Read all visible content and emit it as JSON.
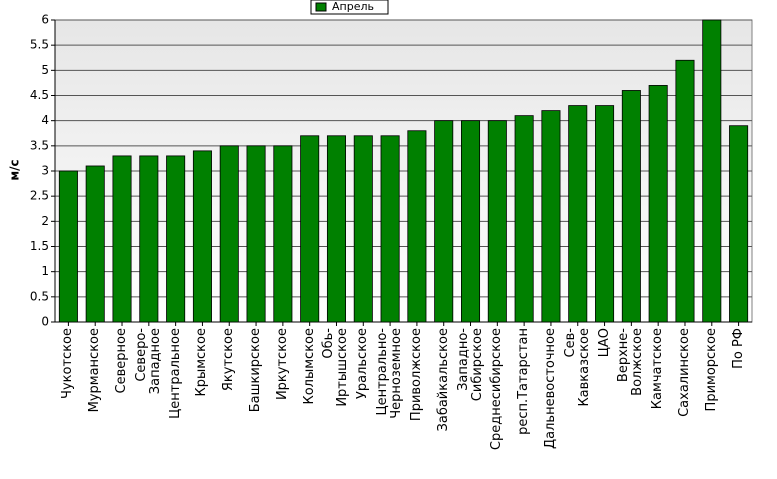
{
  "chart_data": {
    "type": "bar",
    "y_label": "м/с",
    "legend": "top",
    "series": [
      {
        "name": "Апрель",
        "color": "#008000",
        "values": [
          3.0,
          3.1,
          3.3,
          3.3,
          3.3,
          3.4,
          3.5,
          3.5,
          3.5,
          3.7,
          3.7,
          3.7,
          3.7,
          3.8,
          4.0,
          4.0,
          4.0,
          4.1,
          4.2,
          4.3,
          4.3,
          4.6,
          4.7,
          5.2,
          6.0,
          3.9
        ]
      }
    ],
    "categories": [
      "Чукотское",
      "Мурманское",
      "Северное",
      "Северо-\nЗападное",
      "Центральное",
      "Крымское",
      "Якутское",
      "Башкирское",
      "Иркутское",
      "Колымское",
      "Обь-\nИртышское",
      "Уральское",
      "Центрально-\nЧерноземное",
      "Приволжское",
      "Забайкальское",
      "Западно-\nСибирское",
      "Среднесибирское",
      "респ.Татарстан",
      "Дальневосточное",
      "Сев-\nКавказское",
      "ЦАО",
      "Верхне-\nВолжское",
      "Камчатское",
      "Сахалинское",
      "Приморское",
      "По РФ"
    ],
    "ylim": [
      0,
      6
    ],
    "yticks": [
      0,
      0.5,
      1,
      1.5,
      2,
      2.5,
      3,
      3.5,
      4,
      4.5,
      5,
      5.5,
      6
    ],
    "grid": true
  }
}
